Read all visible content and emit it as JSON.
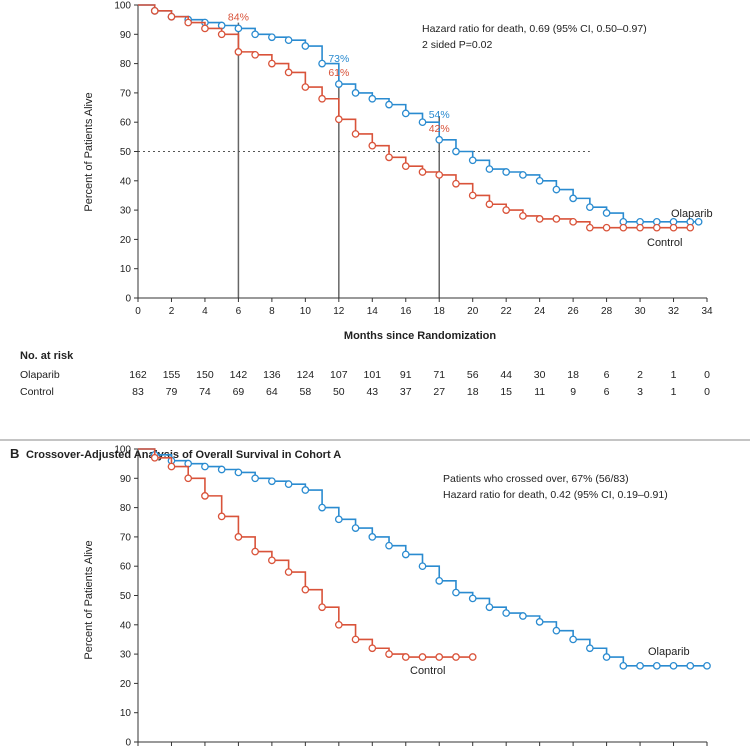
{
  "chart_data": [
    {
      "type": "line",
      "panel": "A",
      "ylabel": "Percent of Patients Alive",
      "xlabel": "Months since Randomization",
      "xlim": [
        0,
        34
      ],
      "ylim": [
        0,
        100
      ],
      "xticks": [
        0,
        2,
        4,
        6,
        8,
        10,
        12,
        14,
        16,
        18,
        20,
        22,
        24,
        26,
        28,
        30,
        32,
        34
      ],
      "yticks": [
        0,
        10,
        20,
        30,
        40,
        50,
        60,
        70,
        80,
        90,
        100
      ],
      "annotations": [
        "Hazard ratio for death, 0.69 (95% CI, 0.50–0.97)",
        "2 sided P=0.02"
      ],
      "reference_line_y": 50,
      "landmarks": [
        {
          "x": 6,
          "olaparib": "",
          "control": "84%"
        },
        {
          "x": 12,
          "olaparib": "73%",
          "control": "61%"
        },
        {
          "x": 18,
          "olaparib": "54%",
          "control": "42%"
        }
      ],
      "series": [
        {
          "name": "Olaparib",
          "color": "#2a8bd0",
          "x": [
            0,
            1,
            2,
            3,
            4,
            5,
            6,
            7,
            8,
            9,
            10,
            11,
            12,
            13,
            14,
            15,
            16,
            17,
            18,
            19,
            20,
            21,
            22,
            23,
            24,
            25,
            26,
            27,
            28,
            29,
            30,
            31,
            32,
            33,
            33.5
          ],
          "y": [
            100,
            98,
            96,
            95,
            94,
            93,
            92,
            90,
            89,
            88,
            86,
            80,
            73,
            70,
            68,
            66,
            63,
            60,
            54,
            50,
            47,
            44,
            43,
            42,
            40,
            37,
            34,
            31,
            29,
            26,
            26,
            26,
            26,
            26,
            26
          ]
        },
        {
          "name": "Control",
          "color": "#d9533a",
          "x": [
            0,
            1,
            2,
            3,
            4,
            5,
            6,
            7,
            8,
            9,
            10,
            11,
            12,
            13,
            14,
            15,
            16,
            17,
            18,
            19,
            20,
            21,
            22,
            23,
            24,
            25,
            26,
            27,
            28,
            29,
            30,
            31,
            32,
            33
          ],
          "y": [
            100,
            98,
            96,
            94,
            92,
            90,
            84,
            83,
            80,
            77,
            72,
            68,
            61,
            56,
            52,
            48,
            45,
            43,
            42,
            39,
            35,
            32,
            30,
            28,
            27,
            27,
            26,
            24,
            24,
            24,
            24,
            24,
            24,
            24
          ]
        }
      ],
      "risk_table": {
        "title": "No. at risk",
        "x": [
          0,
          2,
          4,
          6,
          8,
          10,
          12,
          14,
          16,
          18,
          20,
          22,
          24,
          26,
          28,
          30,
          32,
          34
        ],
        "rows": [
          {
            "name": "Olaparib",
            "values": [
              "162",
              "155",
              "150",
              "142",
              "136",
              "124",
              "107",
              "101",
              "91",
              "71",
              "56",
              "44",
              "30",
              "18",
              "6",
              "2",
              "1",
              "0"
            ]
          },
          {
            "name": "Control",
            "values": [
              "83",
              "79",
              "74",
              "69",
              "64",
              "58",
              "50",
              "43",
              "37",
              "27",
              "18",
              "15",
              "11",
              "9",
              "6",
              "3",
              "1",
              "0"
            ]
          }
        ]
      },
      "labels": {
        "olaparib": "Olaparib",
        "control": "Control"
      }
    },
    {
      "type": "line",
      "panel": "B",
      "title": "Crossover-Adjusted Analysis of Overall Survival in Cohort A",
      "ylabel": "Percent of Patients Alive",
      "xlim": [
        0,
        34
      ],
      "ylim": [
        0,
        100
      ],
      "yticks": [
        0,
        10,
        20,
        30,
        40,
        50,
        60,
        70,
        80,
        90,
        100
      ],
      "annotations": [
        "Patients who crossed over, 67% (56/83)",
        "Hazard ratio for death, 0.42 (95% CI, 0.19–0.91)"
      ],
      "series": [
        {
          "name": "Olaparib",
          "color": "#2a8bd0",
          "x": [
            0,
            1,
            2,
            3,
            4,
            5,
            6,
            7,
            8,
            9,
            10,
            11,
            12,
            13,
            14,
            15,
            16,
            17,
            18,
            19,
            20,
            21,
            22,
            23,
            24,
            25,
            26,
            27,
            28,
            29,
            30,
            31,
            32,
            33,
            34
          ],
          "y": [
            100,
            98,
            96,
            95,
            94,
            93,
            92,
            90,
            89,
            88,
            86,
            80,
            76,
            73,
            70,
            67,
            64,
            60,
            55,
            51,
            49,
            46,
            44,
            43,
            41,
            38,
            35,
            32,
            29,
            26,
            26,
            26,
            26,
            26,
            26
          ]
        },
        {
          "name": "Control",
          "color": "#d9533a",
          "x": [
            0,
            1,
            2,
            3,
            4,
            5,
            6,
            7,
            8,
            9,
            10,
            11,
            12,
            13,
            14,
            15,
            16,
            17,
            18,
            19,
            20
          ],
          "y": [
            100,
            97,
            94,
            90,
            84,
            77,
            70,
            65,
            62,
            58,
            52,
            46,
            40,
            35,
            32,
            30,
            29,
            29,
            29,
            29,
            29
          ]
        }
      ],
      "labels": {
        "olaparib": "Olaparib",
        "control": "Control"
      }
    }
  ],
  "panel_b_letter": "B"
}
